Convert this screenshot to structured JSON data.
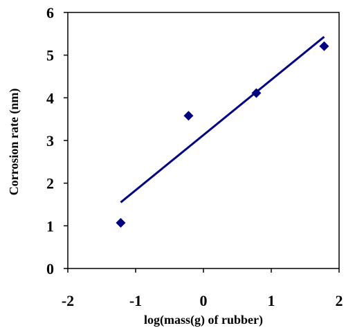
{
  "chart_data": {
    "type": "scatter",
    "title": "",
    "xlabel": "log(mass(g) of rubber)",
    "ylabel": "Corrosion rate (nm)",
    "xlim": [
      -2,
      2
    ],
    "ylim": [
      0,
      6
    ],
    "x_ticks": [
      -2,
      -1,
      0,
      1,
      2
    ],
    "y_ticks": [
      0,
      1,
      2,
      3,
      4,
      5,
      6
    ],
    "grid": false,
    "legend": "none",
    "series": [
      {
        "marker": "diamond",
        "color": "#000080",
        "points": [
          {
            "x": -1.22,
            "y": 1.07
          },
          {
            "x": -0.22,
            "y": 3.58
          },
          {
            "x": 0.78,
            "y": 4.11
          },
          {
            "x": 1.78,
            "y": 5.21
          }
        ]
      }
    ],
    "trendline": {
      "type": "linear",
      "color": "#000080",
      "x_start": -1.22,
      "y_start": 1.55,
      "x_end": 1.78,
      "y_end": 5.43
    }
  }
}
